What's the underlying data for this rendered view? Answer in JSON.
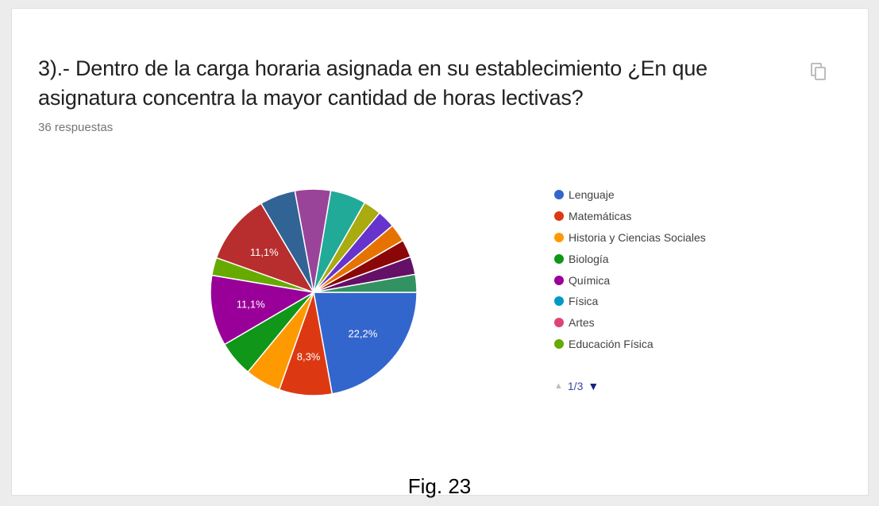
{
  "card": {
    "question": "3).- Dentro de la carga horaria asignada en su establecimiento ¿En que asignatura concentra la mayor cantidad de horas lectivas?",
    "responses": "36 respuestas",
    "copy_icon": "copy-icon"
  },
  "chart_data": {
    "type": "pie",
    "title": "",
    "slices": [
      {
        "label": "Lenguaje",
        "value": 22.2,
        "color": "#3366cc",
        "data_label": "22,2%"
      },
      {
        "label": "Matemáticas",
        "value": 8.3,
        "color": "#dc3912",
        "data_label": "8,3%"
      },
      {
        "label": "Historia y Ciencias Sociales",
        "value": 5.6,
        "color": "#ff9900",
        "data_label": ""
      },
      {
        "label": "Biología",
        "value": 5.6,
        "color": "#109618",
        "data_label": ""
      },
      {
        "label": "Química",
        "value": 11.1,
        "color": "#990099",
        "data_label": "11,1%"
      },
      {
        "label": "",
        "value": 2.8,
        "color": "#66aa00",
        "data_label": ""
      },
      {
        "label": "",
        "value": 11.1,
        "color": "#b82e2e",
        "data_label": "11,1%"
      },
      {
        "label": "",
        "value": 5.6,
        "color": "#316395",
        "data_label": ""
      },
      {
        "label": "",
        "value": 5.6,
        "color": "#994499",
        "data_label": ""
      },
      {
        "label": "",
        "value": 5.6,
        "color": "#22aa99",
        "data_label": ""
      },
      {
        "label": "",
        "value": 2.8,
        "color": "#aaaa11",
        "data_label": ""
      },
      {
        "label": "",
        "value": 2.8,
        "color": "#6633cc",
        "data_label": ""
      },
      {
        "label": "",
        "value": 2.8,
        "color": "#e67300",
        "data_label": ""
      },
      {
        "label": "",
        "value": 2.8,
        "color": "#8b0707",
        "data_label": ""
      },
      {
        "label": "",
        "value": 2.8,
        "color": "#651067",
        "data_label": ""
      },
      {
        "label": "",
        "value": 2.8,
        "color": "#329262",
        "data_label": ""
      }
    ],
    "legend": [
      {
        "label": "Lenguaje",
        "color": "#3366cc"
      },
      {
        "label": "Matemáticas",
        "color": "#dc3912"
      },
      {
        "label": "Historia y Ciencias Sociales",
        "color": "#ff9900"
      },
      {
        "label": "Biología",
        "color": "#109618"
      },
      {
        "label": "Química",
        "color": "#990099"
      },
      {
        "label": "Física",
        "color": "#0099c6"
      },
      {
        "label": "Artes",
        "color": "#dd4477"
      },
      {
        "label": "Educación Física",
        "color": "#66aa00"
      }
    ],
    "legend_position": "right"
  },
  "pager": {
    "up_icon": "triangle-up-icon",
    "text": "1/3",
    "down_icon": "triangle-down-icon"
  },
  "caption": "Fig. 23"
}
